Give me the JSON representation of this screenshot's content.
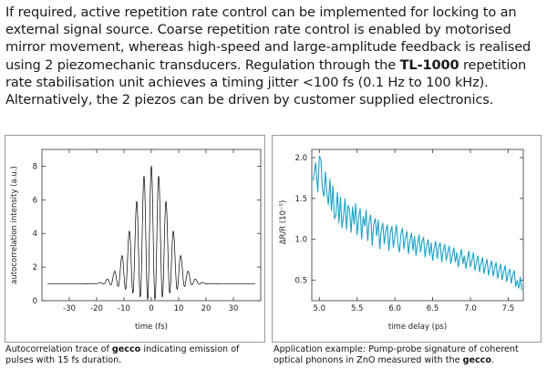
{
  "intro": {
    "part1": "If required, active repetition rate control can be implemented for locking to an external signal source. Coarse repetition rate control is enabled by motorised mirror movement, whereas high-speed and large-amplitude feedback is realised using 2 piezomechanic transducers. Regulation through the ",
    "product": "TL-1000",
    "part2": " repetition rate stabilisation unit achieves a timing jitter <100 fs  (0.1 Hz to 100 kHz). Alternatively, the 2 piezos can be driven by customer supplied electronics."
  },
  "captions": {
    "left": {
      "before": "Autocorrelation trace of ",
      "bold": "gecco",
      "after": " indicating emission of pulses with 15 fs duration."
    },
    "right": {
      "before": "Application example: Pump-probe signature of coherent optical phonons in ZnO measured with the ",
      "bold": "gecco",
      "after": "."
    }
  },
  "chart_data": [
    {
      "type": "line",
      "xlabel": "time (fs)",
      "ylabel": "autocorrelation intensity (a.u.)",
      "xlim": [
        -40,
        40
      ],
      "ylim": [
        0,
        9
      ],
      "xticks": [
        "-30",
        "-20",
        "-10",
        "0",
        "10",
        "20",
        "30"
      ],
      "yticks": [
        "0",
        "2",
        "4",
        "6",
        "8"
      ],
      "color": "#000000",
      "series": [
        {
          "model": "interferometric autocorrelation",
          "baseline": 1,
          "fringe_period_fs": 2.7,
          "envelope_fwhm_fs": 15,
          "peak": 8
        }
      ]
    },
    {
      "type": "line",
      "xlabel": "time delay (ps)",
      "ylabel": "ΔR/R (10⁻⁵)",
      "xlim": [
        4.9,
        7.7
      ],
      "ylim": [
        0.25,
        2.1
      ],
      "xticks": [
        "5.0",
        "5.5",
        "6.0",
        "6.5",
        "7.0",
        "7.5"
      ],
      "yticks": [
        "0.5",
        "1.0",
        "1.5",
        "2.0"
      ],
      "color": "#1ba3c8",
      "series": [
        {
          "x": [
            4.92,
            4.95,
            4.98,
            5.0,
            5.02,
            5.04,
            5.06,
            5.08,
            5.1,
            5.12,
            5.14,
            5.16,
            5.18,
            5.2,
            5.22,
            5.24,
            5.26,
            5.28,
            5.3,
            5.32,
            5.34,
            5.36,
            5.38,
            5.4,
            5.42,
            5.44,
            5.46,
            5.48,
            5.5,
            5.52,
            5.54,
            5.56,
            5.58,
            5.6,
            5.62,
            5.64,
            5.66,
            5.68,
            5.7,
            5.72,
            5.74,
            5.76,
            5.78,
            5.8,
            5.82,
            5.84,
            5.86,
            5.88,
            5.9,
            5.92,
            5.94,
            5.96,
            5.98,
            6.0,
            6.02,
            6.04,
            6.06,
            6.08,
            6.1,
            6.12,
            6.14,
            6.16,
            6.18,
            6.2,
            6.22,
            6.24,
            6.26,
            6.28,
            6.3,
            6.32,
            6.34,
            6.36,
            6.38,
            6.4,
            6.42,
            6.44,
            6.46,
            6.48,
            6.5,
            6.52,
            6.54,
            6.56,
            6.58,
            6.6,
            6.62,
            6.64,
            6.66,
            6.68,
            6.7,
            6.72,
            6.74,
            6.76,
            6.78,
            6.8,
            6.82,
            6.84,
            6.86,
            6.88,
            6.9,
            6.92,
            6.94,
            6.96,
            6.98,
            7.0,
            7.02,
            7.04,
            7.06,
            7.08,
            7.1,
            7.12,
            7.14,
            7.16,
            7.18,
            7.2,
            7.22,
            7.24,
            7.26,
            7.28,
            7.3,
            7.32,
            7.34,
            7.36,
            7.38,
            7.4,
            7.42,
            7.44,
            7.46,
            7.48,
            7.5,
            7.52,
            7.54,
            7.56,
            7.58,
            7.6,
            7.62,
            7.64,
            7.66,
            7.68
          ],
          "y": [
            1.72,
            1.94,
            1.58,
            2.02,
            1.98,
            1.62,
            1.52,
            1.83,
            1.56,
            1.42,
            1.74,
            1.35,
            1.66,
            1.25,
            1.3,
            1.58,
            1.2,
            1.52,
            1.14,
            1.28,
            1.5,
            1.12,
            1.42,
            1.36,
            1.08,
            1.4,
            1.18,
            1.44,
            1.05,
            1.26,
            1.38,
            1.0,
            1.28,
            1.16,
            1.36,
            0.98,
            1.22,
            1.3,
            0.92,
            1.18,
            1.26,
            1.04,
            1.24,
            0.88,
            1.12,
            1.2,
            0.94,
            1.1,
            1.18,
            0.86,
            1.08,
            1.16,
            0.9,
            1.04,
            1.18,
            0.95,
            0.84,
            1.06,
            1.14,
            0.88,
            1.02,
            1.1,
            0.82,
            0.98,
            1.08,
            0.86,
            1.04,
            0.8,
            0.94,
            1.06,
            0.84,
            0.98,
            1.02,
            0.78,
            0.92,
            1.0,
            0.8,
            0.96,
            0.74,
            0.88,
            0.98,
            0.76,
            0.9,
            0.96,
            0.72,
            0.86,
            0.94,
            0.74,
            0.84,
            0.92,
            0.7,
            0.8,
            0.9,
            0.72,
            0.84,
            0.66,
            0.78,
            0.88,
            0.7,
            0.8,
            0.64,
            0.76,
            0.86,
            0.66,
            0.74,
            0.84,
            0.62,
            0.72,
            0.8,
            0.6,
            0.7,
            0.78,
            0.58,
            0.68,
            0.76,
            0.56,
            0.66,
            0.74,
            0.55,
            0.64,
            0.72,
            0.52,
            0.62,
            0.7,
            0.5,
            0.6,
            0.68,
            0.48,
            0.58,
            0.64,
            0.46,
            0.56,
            0.62,
            0.42,
            0.5,
            0.4,
            0.54,
            0.38
          ]
        }
      ]
    }
  ]
}
